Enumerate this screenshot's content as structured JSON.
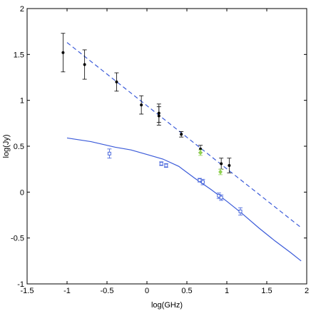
{
  "chart_data": {
    "type": "scatter",
    "title": "",
    "xlabel": "log(GHz)",
    "ylabel": "log(Jy)",
    "xlim": [
      -1.5,
      2
    ],
    "ylim": [
      -1,
      2
    ],
    "xticks": [
      -1.5,
      -1,
      -0.5,
      0,
      0.5,
      1,
      1.5,
      2
    ],
    "xtick_labels": [
      "-1.5",
      "-1",
      "-0.5",
      "0",
      "0.5",
      "1",
      "1.5",
      "2"
    ],
    "yticks": [
      -1,
      -0.5,
      0,
      0.5,
      1,
      1.5,
      2
    ],
    "ytick_labels": [
      "-1",
      "-0.5",
      "0",
      "0.5",
      "1",
      "1.5",
      "2"
    ],
    "grid": false,
    "legend": "none",
    "series": [
      {
        "kind": "points",
        "marker": "dot",
        "color": "#000000",
        "points": [
          {
            "x": -1.05,
            "y": 1.52,
            "err": 0.21
          },
          {
            "x": -0.78,
            "y": 1.39,
            "err": 0.16
          },
          {
            "x": -0.38,
            "y": 1.2,
            "err": 0.1
          },
          {
            "x": -0.07,
            "y": 0.95,
            "err": 0.1
          },
          {
            "x": 0.15,
            "y": 0.86,
            "err": 0.1
          },
          {
            "x": 0.15,
            "y": 0.83,
            "err": 0.1
          },
          {
            "x": 0.43,
            "y": 0.63,
            "err": 0.03
          },
          {
            "x": 0.67,
            "y": 0.47,
            "err": 0.04
          },
          {
            "x": 0.93,
            "y": 0.31,
            "err": 0.06
          },
          {
            "x": 1.03,
            "y": 0.29,
            "err": 0.08
          }
        ]
      },
      {
        "kind": "points",
        "marker": "open-square",
        "color": "#3b5bd9",
        "points": [
          {
            "x": -0.47,
            "y": 0.42,
            "err": 0.05
          },
          {
            "x": 0.18,
            "y": 0.31,
            "err": 0.02
          },
          {
            "x": 0.24,
            "y": 0.29,
            "err": 0.02
          },
          {
            "x": 0.66,
            "y": 0.13,
            "err": 0.02
          },
          {
            "x": 0.7,
            "y": 0.11,
            "err": 0.03
          },
          {
            "x": 0.9,
            "y": -0.04,
            "err": 0.03
          },
          {
            "x": 0.93,
            "y": -0.06,
            "err": 0.03
          },
          {
            "x": 1.17,
            "y": -0.21,
            "err": 0.04
          }
        ]
      },
      {
        "kind": "points",
        "marker": "diamond",
        "color": "#8fd14f",
        "points": [
          {
            "x": 0.67,
            "y": 0.43,
            "err": 0.03
          },
          {
            "x": 0.92,
            "y": 0.22,
            "err": 0.03
          }
        ]
      },
      {
        "kind": "line",
        "style": "dashed",
        "color": "#3b5bd9",
        "points": [
          {
            "x": -1.0,
            "y": 1.63
          },
          {
            "x": 1.92,
            "y": -0.38
          }
        ]
      },
      {
        "kind": "line",
        "style": "solid",
        "color": "#3b5bd9",
        "points": [
          {
            "x": -1.0,
            "y": 0.59
          },
          {
            "x": -0.7,
            "y": 0.55
          },
          {
            "x": -0.4,
            "y": 0.49
          },
          {
            "x": -0.2,
            "y": 0.46
          },
          {
            "x": 0.0,
            "y": 0.41
          },
          {
            "x": 0.2,
            "y": 0.36
          },
          {
            "x": 0.4,
            "y": 0.28
          },
          {
            "x": 0.6,
            "y": 0.15
          },
          {
            "x": 0.8,
            "y": 0.03
          },
          {
            "x": 1.0,
            "y": -0.1
          },
          {
            "x": 1.2,
            "y": -0.24
          },
          {
            "x": 1.4,
            "y": -0.39
          },
          {
            "x": 1.6,
            "y": -0.53
          },
          {
            "x": 1.8,
            "y": -0.66
          },
          {
            "x": 1.93,
            "y": -0.75
          }
        ]
      }
    ]
  }
}
